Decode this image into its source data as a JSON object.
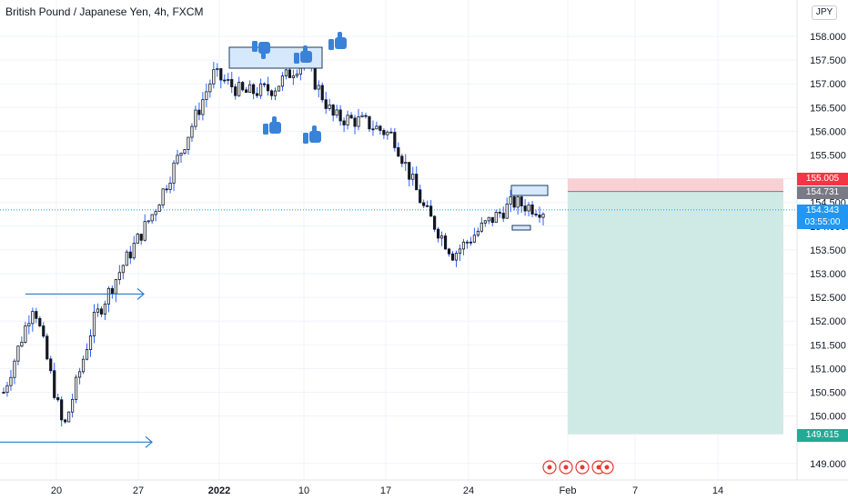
{
  "symbol_title": "British Pound / Japanese Yen, 4h, FXCM",
  "currency": "JPY",
  "colors": {
    "up": "#131722",
    "wick": "#2962ff",
    "grid": "#f0f3fa",
    "stop": "#f23645",
    "target": "#22ab94",
    "entry": "#787b86",
    "current": "#2196f3",
    "annotation": "#2979c9",
    "event": "#e53935"
  },
  "price_scale": {
    "ticks": [
      "158.000",
      "157.500",
      "157.000",
      "156.500",
      "156.000",
      "155.500",
      "155.000",
      "154.500",
      "154.000",
      "153.500",
      "153.000",
      "152.500",
      "152.000",
      "151.500",
      "151.000",
      "150.500",
      "150.000",
      "149.000"
    ]
  },
  "time_scale": {
    "ticks": [
      {
        "label": "20",
        "bold": false
      },
      {
        "label": "27",
        "bold": false
      },
      {
        "label": "2022",
        "bold": true
      },
      {
        "label": "10",
        "bold": false
      },
      {
        "label": "17",
        "bold": false
      },
      {
        "label": "24",
        "bold": false
      },
      {
        "label": "Feb",
        "bold": false
      },
      {
        "label": "7",
        "bold": false
      },
      {
        "label": "14",
        "bold": false
      }
    ]
  },
  "position": {
    "stop_price": "155.005",
    "entry_price": "154.731",
    "target_price": "149.615",
    "current_price": "154.343",
    "countdown": "03:55:00"
  },
  "chart_data": {
    "type": "candlestick",
    "title": "British Pound / Japanese Yen, 4h, FXCM",
    "unit": "JPY",
    "ylim": [
      148.6,
      158.6
    ],
    "grid": true,
    "approx_closes": [
      {
        "date": "Dec 15",
        "close": 150.5
      },
      {
        "date": "Dec 17",
        "close": 152.4
      },
      {
        "date": "Dec 20",
        "close": 149.7
      },
      {
        "date": "Dec 23",
        "close": 152.0
      },
      {
        "date": "Dec 27",
        "close": 153.2
      },
      {
        "date": "Dec 30",
        "close": 154.3
      },
      {
        "date": "Jan 3",
        "close": 155.7
      },
      {
        "date": "Jan 5",
        "close": 157.2
      },
      {
        "date": "Jan 7",
        "close": 156.8
      },
      {
        "date": "Jan 10",
        "close": 156.9
      },
      {
        "date": "Jan 12",
        "close": 157.5
      },
      {
        "date": "Jan 14",
        "close": 156.3
      },
      {
        "date": "Jan 17",
        "close": 156.2
      },
      {
        "date": "Jan 19",
        "close": 155.9
      },
      {
        "date": "Jan 21",
        "close": 154.4
      },
      {
        "date": "Jan 24",
        "close": 153.4
      },
      {
        "date": "Jan 26",
        "close": 154.0
      },
      {
        "date": "Jan 28",
        "close": 154.5
      },
      {
        "date": "Jan 31",
        "close": 154.34
      }
    ]
  }
}
